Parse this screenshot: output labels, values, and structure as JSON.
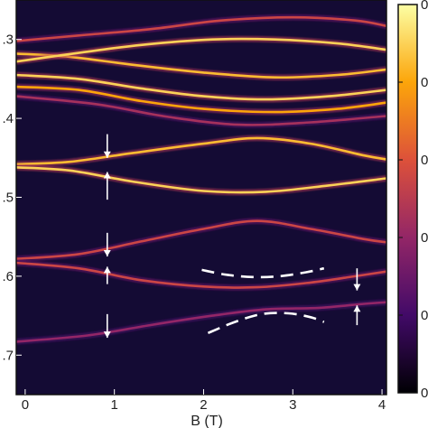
{
  "chart_data": {
    "type": "heatmap",
    "title": "",
    "xlabel": "B (T)",
    "ylabel": "",
    "xlim": [
      -0.1,
      4.05
    ],
    "ylim": [
      -0.75,
      -0.25
    ],
    "x_ticks": [
      0,
      1,
      2,
      3,
      4
    ],
    "x_tick_labels": [
      "0",
      "1",
      "2",
      "3",
      "4"
    ],
    "y_ticks": [
      -0.3,
      -0.4,
      -0.5,
      -0.6,
      -0.7
    ],
    "y_tick_labels": [
      ".3",
      ".4",
      ".5",
      ".6",
      ".7"
    ],
    "colorbar": {
      "colormap": "inferno",
      "tick_labels": [
        "0",
        "0",
        "0",
        "0",
        "0",
        "0"
      ],
      "colors": [
        "#000004",
        "#420a68",
        "#932667",
        "#dd513a",
        "#fca50a",
        "#fcffa4"
      ]
    },
    "background_color": "#140b34",
    "levels": [
      {
        "intensity": 0.55,
        "points": [
          [
            -0.1,
            -0.302
          ],
          [
            0.6,
            -0.295
          ],
          [
            1.4,
            -0.287
          ],
          [
            2.2,
            -0.276
          ],
          [
            3.0,
            -0.272
          ],
          [
            3.7,
            -0.276
          ],
          [
            4.05,
            -0.283
          ]
        ]
      },
      {
        "intensity": 0.85,
        "points": [
          [
            -0.1,
            -0.318
          ],
          [
            0.5,
            -0.322
          ],
          [
            1.2,
            -0.332
          ],
          [
            2.0,
            -0.342
          ],
          [
            2.8,
            -0.348
          ],
          [
            3.5,
            -0.345
          ],
          [
            4.05,
            -0.338
          ]
        ]
      },
      {
        "intensity": 0.9,
        "points": [
          [
            -0.1,
            -0.328
          ],
          [
            0.6,
            -0.317
          ],
          [
            1.3,
            -0.307
          ],
          [
            2.1,
            -0.3
          ],
          [
            2.8,
            -0.3
          ],
          [
            3.5,
            -0.305
          ],
          [
            4.05,
            -0.313
          ]
        ]
      },
      {
        "intensity": 0.9,
        "points": [
          [
            -0.1,
            -0.345
          ],
          [
            0.6,
            -0.35
          ],
          [
            1.3,
            -0.362
          ],
          [
            2.0,
            -0.372
          ],
          [
            2.7,
            -0.376
          ],
          [
            3.4,
            -0.372
          ],
          [
            4.05,
            -0.364
          ]
        ]
      },
      {
        "intensity": 0.8,
        "points": [
          [
            -0.1,
            -0.36
          ],
          [
            0.6,
            -0.364
          ],
          [
            1.3,
            -0.378
          ],
          [
            2.0,
            -0.388
          ],
          [
            2.8,
            -0.392
          ],
          [
            3.5,
            -0.388
          ],
          [
            4.05,
            -0.38
          ]
        ]
      },
      {
        "intensity": 0.45,
        "points": [
          [
            -0.1,
            -0.372
          ],
          [
            0.8,
            -0.382
          ],
          [
            1.6,
            -0.398
          ],
          [
            2.4,
            -0.408
          ],
          [
            3.2,
            -0.405
          ],
          [
            4.05,
            -0.397
          ]
        ]
      },
      {
        "intensity": 0.85,
        "points": [
          [
            -0.1,
            -0.458
          ],
          [
            0.5,
            -0.455
          ],
          [
            1.2,
            -0.444
          ],
          [
            2.0,
            -0.432
          ],
          [
            2.6,
            -0.425
          ],
          [
            3.2,
            -0.432
          ],
          [
            3.8,
            -0.447
          ],
          [
            4.05,
            -0.452
          ]
        ]
      },
      {
        "intensity": 0.9,
        "points": [
          [
            -0.1,
            -0.462
          ],
          [
            0.5,
            -0.466
          ],
          [
            1.2,
            -0.48
          ],
          [
            2.0,
            -0.492
          ],
          [
            2.7,
            -0.493
          ],
          [
            3.4,
            -0.485
          ],
          [
            4.05,
            -0.476
          ]
        ]
      },
      {
        "intensity": 0.55,
        "points": [
          [
            -0.1,
            -0.578
          ],
          [
            0.6,
            -0.572
          ],
          [
            1.3,
            -0.556
          ],
          [
            2.0,
            -0.54
          ],
          [
            2.6,
            -0.53
          ],
          [
            3.2,
            -0.54
          ],
          [
            3.8,
            -0.553
          ],
          [
            4.05,
            -0.557
          ]
        ]
      },
      {
        "intensity": 0.55,
        "points": [
          [
            -0.1,
            -0.583
          ],
          [
            0.6,
            -0.59
          ],
          [
            1.3,
            -0.605
          ],
          [
            2.0,
            -0.613
          ],
          [
            2.6,
            -0.614
          ],
          [
            3.2,
            -0.608
          ],
          [
            3.7,
            -0.6
          ],
          [
            4.05,
            -0.594
          ]
        ]
      },
      {
        "intensity": 0.4,
        "points": [
          [
            -0.1,
            -0.683
          ],
          [
            0.7,
            -0.675
          ],
          [
            1.4,
            -0.662
          ],
          [
            2.1,
            -0.65
          ],
          [
            2.7,
            -0.642
          ],
          [
            3.3,
            -0.64
          ],
          [
            3.8,
            -0.635
          ],
          [
            4.05,
            -0.633
          ]
        ]
      }
    ],
    "annotations": {
      "dashed_curves": [
        {
          "points": [
            [
              1.98,
              -0.592
            ],
            [
              2.25,
              -0.598
            ],
            [
              2.55,
              -0.601
            ],
            [
              2.85,
              -0.6
            ],
            [
              3.15,
              -0.595
            ],
            [
              3.35,
              -0.59
            ]
          ]
        },
        {
          "points": [
            [
              2.05,
              -0.672
            ],
            [
              2.35,
              -0.658
            ],
            [
              2.65,
              -0.648
            ],
            [
              2.95,
              -0.647
            ],
            [
              3.2,
              -0.652
            ],
            [
              3.35,
              -0.658
            ]
          ]
        }
      ],
      "arrows": [
        {
          "x": 0.92,
          "y_from": -0.42,
          "y_to": -0.45
        },
        {
          "x": 0.92,
          "y_from": -0.503,
          "y_to": -0.468
        },
        {
          "x": 0.92,
          "y_from": -0.545,
          "y_to": -0.575
        },
        {
          "x": 0.92,
          "y_from": -0.61,
          "y_to": -0.588
        },
        {
          "x": 0.92,
          "y_from": -0.648,
          "y_to": -0.678
        },
        {
          "x": 3.72,
          "y_from": -0.59,
          "y_to": -0.618
        },
        {
          "x": 3.72,
          "y_from": -0.662,
          "y_to": -0.637
        }
      ]
    }
  }
}
